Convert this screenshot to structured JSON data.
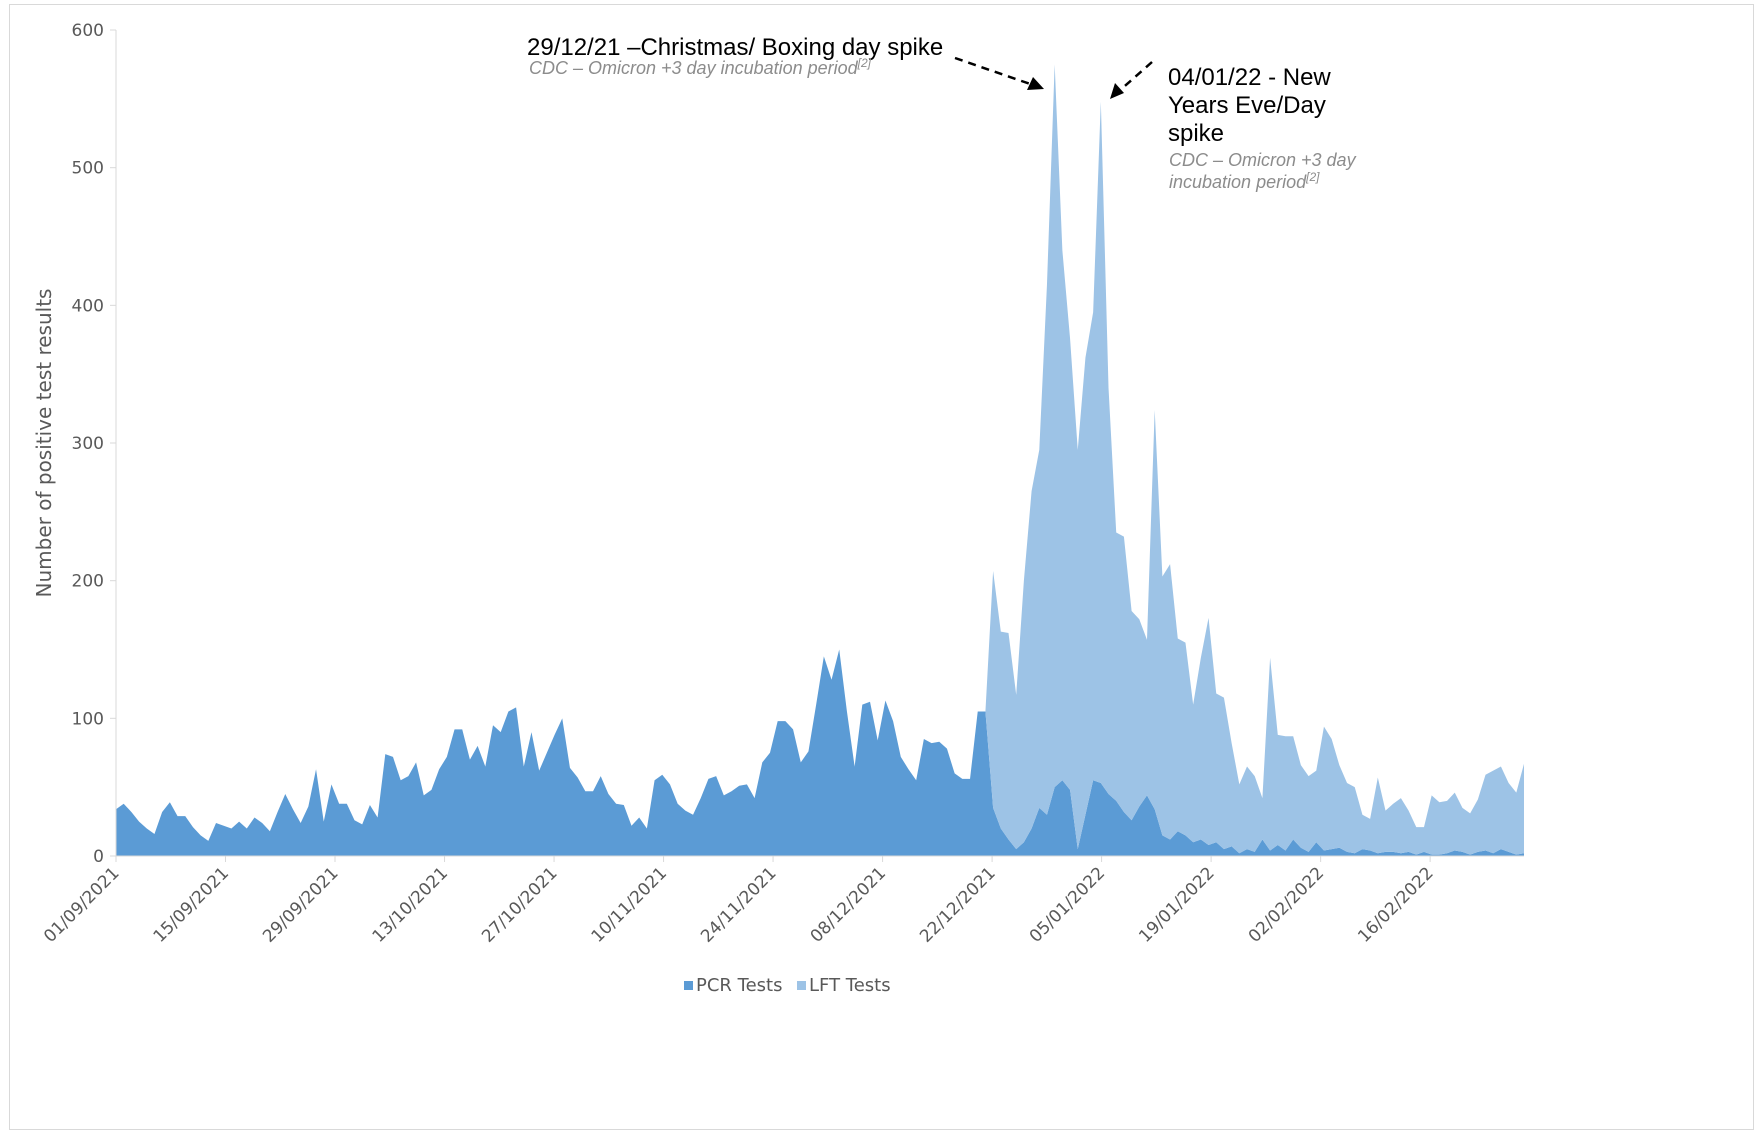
{
  "chart_data": {
    "type": "area",
    "stacked": true,
    "title": "",
    "xlabel": "",
    "ylabel": "Number of positive test results",
    "ylim": [
      0,
      600
    ],
    "y_ticks": [
      "0",
      "100",
      "200",
      "300",
      "400",
      "500",
      "600"
    ],
    "x_tick_labels": [
      "01/09/2021",
      "15/09/2021",
      "29/09/2021",
      "13/10/2021",
      "27/10/2021",
      "10/11/2021",
      "24/11/2021",
      "08/12/2021",
      "22/12/2021",
      "05/01/2022",
      "19/01/2022",
      "02/02/2022",
      "16/02/2022"
    ],
    "x_start": "01/09/2021",
    "x_end": "28/02/2022",
    "legend_position": "bottom",
    "grid": false,
    "series": [
      {
        "name": "PCR Tests",
        "color": "#5b9bd5",
        "values": [
          34,
          38,
          32,
          25,
          20,
          16,
          32,
          39,
          29,
          29,
          21,
          15,
          11,
          24,
          22,
          20,
          25,
          20,
          28,
          24,
          18,
          32,
          45,
          34,
          24,
          36,
          63,
          25,
          52,
          38,
          38,
          26,
          23,
          37,
          28,
          74,
          72,
          55,
          58,
          68,
          44,
          48,
          63,
          72,
          92,
          92,
          70,
          80,
          65,
          95,
          90,
          105,
          108,
          65,
          90,
          62,
          75,
          88,
          100,
          64,
          57,
          47,
          47,
          58,
          45,
          38,
          37,
          22,
          28,
          20,
          55,
          59,
          52,
          38,
          33,
          30,
          42,
          56,
          58,
          44,
          47,
          51,
          52,
          42,
          68,
          75,
          98,
          98,
          92,
          68,
          76,
          110,
          145,
          128,
          150,
          105,
          65,
          110,
          112,
          84,
          113,
          98,
          72,
          63,
          55,
          85,
          82,
          83,
          78,
          60,
          56,
          56,
          105,
          105,
          35,
          20,
          12,
          5,
          10,
          20,
          35,
          30,
          50,
          55,
          48,
          5,
          30,
          55,
          53,
          45,
          40,
          32,
          26,
          36,
          44,
          34,
          15,
          12,
          18,
          15,
          10,
          12,
          8,
          10,
          5,
          7,
          2,
          5,
          3,
          12,
          4,
          8,
          4,
          12,
          6,
          3,
          10,
          4,
          5,
          6,
          3,
          2,
          5,
          4,
          2,
          3,
          3,
          2,
          3,
          1,
          3,
          1,
          1,
          2,
          4,
          3,
          1,
          3,
          4,
          2,
          5,
          3,
          1,
          2
        ]
      },
      {
        "name": "LFT Tests",
        "color": "#9dc3e6",
        "values": [
          0,
          0,
          0,
          0,
          0,
          0,
          0,
          0,
          0,
          0,
          0,
          0,
          0,
          0,
          0,
          0,
          0,
          0,
          0,
          0,
          0,
          0,
          0,
          0,
          0,
          0,
          0,
          0,
          0,
          0,
          0,
          0,
          0,
          0,
          0,
          0,
          0,
          0,
          0,
          0,
          0,
          0,
          0,
          0,
          0,
          0,
          0,
          0,
          0,
          0,
          0,
          0,
          0,
          0,
          0,
          0,
          0,
          0,
          0,
          0,
          0,
          0,
          0,
          0,
          0,
          0,
          0,
          0,
          0,
          0,
          0,
          0,
          0,
          0,
          0,
          0,
          0,
          0,
          0,
          0,
          0,
          0,
          0,
          0,
          0,
          0,
          0,
          0,
          0,
          0,
          0,
          0,
          0,
          0,
          0,
          0,
          0,
          0,
          0,
          0,
          0,
          0,
          0,
          0,
          0,
          0,
          0,
          0,
          0,
          0,
          0,
          0,
          0,
          0,
          172,
          143,
          150,
          112,
          190,
          245,
          260,
          385,
          525,
          385,
          328,
          290,
          332,
          340,
          495,
          295,
          195,
          200,
          152,
          136,
          113,
          290,
          188,
          200,
          140,
          140,
          100,
          132,
          165,
          108,
          110,
          75,
          50,
          60,
          55,
          30,
          140,
          80,
          83,
          75,
          60,
          55,
          52,
          90,
          80,
          60,
          50,
          48,
          25,
          23,
          55,
          30,
          35,
          40,
          30,
          20,
          18,
          43,
          38,
          38,
          42,
          32,
          30,
          38,
          55,
          60,
          60,
          50,
          45,
          65,
          65
        ]
      }
    ],
    "annotations": [
      {
        "title": "29/12/21 –Christmas/ Boxing day spike",
        "note": "CDC – Omicron +3 day incubation period",
        "ref": "[2]"
      },
      {
        "title_lines": [
          "04/01/22 - New",
          "Years Eve/Day",
          "spike"
        ],
        "note_lines": [
          "CDC – Omicron +3 day",
          "incubation period"
        ],
        "ref": "[2]"
      }
    ]
  }
}
